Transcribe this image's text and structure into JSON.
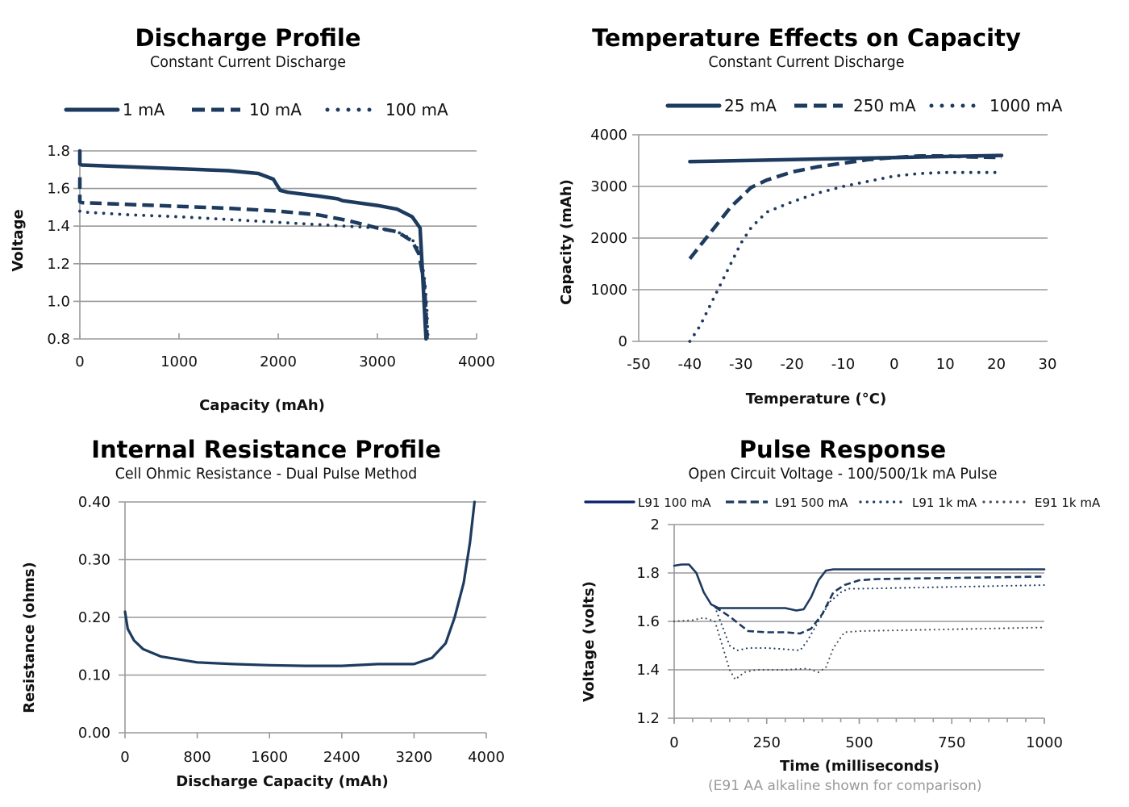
{
  "colors": {
    "series": "#1d3a5f",
    "series_pulse_l91_100": "#0a1f6b",
    "grid": "#999999",
    "note": "#999999"
  },
  "chart_data": [
    {
      "id": "discharge",
      "type": "line",
      "title": "Discharge Profile",
      "subtitle": "Constant Current Discharge",
      "xlabel": "Capacity (mAh)",
      "ylabel": "Voltage",
      "xlim": [
        0,
        4000
      ],
      "ylim": [
        0.8,
        1.8
      ],
      "xticks": [
        "0",
        "1000",
        "2000",
        "3000",
        "4000"
      ],
      "yticks": [
        "0.8",
        "1.0",
        "1.2",
        "1.4",
        "1.6",
        "1.8"
      ],
      "grid": true,
      "legend_position": "top",
      "series": [
        {
          "name": "1 mA",
          "style": "solid",
          "x": [
            0,
            0,
            20,
            500,
            1000,
            1500,
            1800,
            1950,
            2020,
            2100,
            2400,
            2600,
            2650,
            3000,
            3200,
            3350,
            3430,
            3460,
            3480,
            3490
          ],
          "y": [
            1.8,
            1.73,
            1.725,
            1.715,
            1.705,
            1.695,
            1.68,
            1.65,
            1.59,
            1.58,
            1.56,
            1.545,
            1.535,
            1.51,
            1.49,
            1.45,
            1.39,
            1.1,
            0.9,
            0.8
          ]
        },
        {
          "name": "10 mA",
          "style": "dashed",
          "x": [
            0,
            0,
            20,
            500,
            1000,
            1500,
            2000,
            2400,
            2700,
            3000,
            3200,
            3350,
            3420,
            3470,
            3490,
            3500
          ],
          "y": [
            1.66,
            1.53,
            1.525,
            1.515,
            1.505,
            1.495,
            1.48,
            1.46,
            1.43,
            1.39,
            1.37,
            1.32,
            1.25,
            1.1,
            0.95,
            0.8
          ]
        },
        {
          "name": "100 mA",
          "style": "dotted",
          "x": [
            0,
            20,
            500,
            1000,
            1500,
            2000,
            2500,
            3000,
            3200,
            3350,
            3440,
            3480,
            3500,
            3510
          ],
          "y": [
            1.48,
            1.475,
            1.46,
            1.45,
            1.435,
            1.42,
            1.405,
            1.39,
            1.37,
            1.33,
            1.25,
            1.1,
            0.95,
            0.8
          ]
        }
      ]
    },
    {
      "id": "temperature",
      "type": "line",
      "title": "Temperature Effects on Capacity",
      "subtitle": "Constant Current Discharge",
      "xlabel": "Temperature (°C)",
      "ylabel": "Capacity (mAh)",
      "xlim": [
        -50,
        30
      ],
      "ylim": [
        0,
        4000
      ],
      "xticks": [
        "-50",
        "-40",
        "-30",
        "-20",
        "-10",
        "0",
        "10",
        "20",
        "30"
      ],
      "yticks": [
        "0",
        "1000",
        "2000",
        "3000",
        "4000"
      ],
      "grid": true,
      "legend_position": "top",
      "series": [
        {
          "name": "25 mA",
          "style": "solid",
          "x": [
            -40,
            -20,
            0,
            21
          ],
          "y": [
            3480,
            3520,
            3560,
            3600
          ]
        },
        {
          "name": "250 mA",
          "style": "dashed",
          "x": [
            -40,
            -36,
            -32,
            -28,
            -25,
            -20,
            -15,
            -10,
            -5,
            0,
            5,
            10,
            15,
            21
          ],
          "y": [
            1600,
            2100,
            2600,
            2980,
            3120,
            3280,
            3380,
            3450,
            3520,
            3560,
            3590,
            3590,
            3570,
            3560
          ]
        },
        {
          "name": "1000 mA",
          "style": "dotted",
          "x": [
            -40,
            -38,
            -36,
            -34,
            -32,
            -30,
            -28,
            -25,
            -20,
            -15,
            -10,
            -5,
            0,
            5,
            10,
            15,
            21
          ],
          "y": [
            0,
            300,
            700,
            1100,
            1500,
            1900,
            2200,
            2500,
            2700,
            2870,
            3000,
            3100,
            3200,
            3250,
            3270,
            3270,
            3270
          ]
        }
      ]
    },
    {
      "id": "resistance",
      "type": "line",
      "title": "Internal Resistance Profile",
      "subtitle": "Cell Ohmic Resistance - Dual Pulse Method",
      "xlabel": "Discharge Capacity (mAh)",
      "ylabel": "Resistance (ohms)",
      "xlim": [
        0,
        4000
      ],
      "ylim": [
        0,
        0.4
      ],
      "xticks": [
        "0",
        "800",
        "1600",
        "2400",
        "3200",
        "4000"
      ],
      "yticks": [
        "0.00",
        "0.10",
        "0.20",
        "0.30",
        "0.40"
      ],
      "grid": true,
      "series": [
        {
          "name": "Resistance",
          "style": "solid",
          "x": [
            0,
            30,
            100,
            200,
            400,
            800,
            1200,
            1600,
            2000,
            2400,
            2800,
            3200,
            3400,
            3550,
            3650,
            3750,
            3820,
            3870
          ],
          "y": [
            0.21,
            0.18,
            0.16,
            0.145,
            0.132,
            0.122,
            0.119,
            0.117,
            0.116,
            0.116,
            0.119,
            0.119,
            0.13,
            0.155,
            0.2,
            0.26,
            0.33,
            0.4
          ]
        }
      ]
    },
    {
      "id": "pulse",
      "type": "line",
      "title": "Pulse Response",
      "subtitle": "Open Circuit Voltage -  100/500/1k mA Pulse",
      "xlabel": "Time (milliseconds)",
      "ylabel": "Voltage (volts)",
      "note": "(E91 AA alkaline shown for comparison)",
      "xlim": [
        0,
        1000
      ],
      "ylim": [
        1.2,
        2.0
      ],
      "xticks": [
        "0",
        "250",
        "500",
        "750",
        "1000"
      ],
      "yticks": [
        "1.2",
        "1.4",
        "1.6",
        "1.8",
        "2"
      ],
      "grid": true,
      "legend_position": "top",
      "series": [
        {
          "name": "L91 100 mA",
          "style": "solid",
          "x": [
            0,
            20,
            40,
            60,
            80,
            100,
            120,
            200,
            300,
            330,
            350,
            370,
            390,
            410,
            430,
            500,
            1000
          ],
          "y": [
            1.83,
            1.835,
            1.835,
            1.8,
            1.72,
            1.67,
            1.655,
            1.655,
            1.655,
            1.645,
            1.65,
            1.7,
            1.77,
            1.81,
            1.815,
            1.815,
            1.815
          ]
        },
        {
          "name": "L91 500 mA",
          "style": "dashed",
          "x": [
            110,
            150,
            200,
            250,
            300,
            340,
            370,
            400,
            430,
            460,
            500,
            550,
            1000
          ],
          "y": [
            1.66,
            1.62,
            1.56,
            1.555,
            1.555,
            1.55,
            1.57,
            1.63,
            1.72,
            1.75,
            1.77,
            1.775,
            1.785
          ]
        },
        {
          "name": "L91 1k mA",
          "style": "dotted",
          "x": [
            110,
            130,
            150,
            170,
            200,
            250,
            300,
            340,
            360,
            390,
            420,
            450,
            470,
            500,
            1000
          ],
          "y": [
            1.66,
            1.58,
            1.5,
            1.48,
            1.49,
            1.49,
            1.485,
            1.48,
            1.52,
            1.6,
            1.68,
            1.72,
            1.735,
            1.735,
            1.75
          ]
        },
        {
          "name": "E91 1k mA",
          "style": "dotted",
          "x": [
            0,
            50,
            80,
            110,
            130,
            150,
            165,
            190,
            220,
            300,
            360,
            390,
            410,
            430,
            460,
            500,
            1000
          ],
          "y": [
            1.6,
            1.605,
            1.615,
            1.6,
            1.5,
            1.4,
            1.36,
            1.39,
            1.4,
            1.4,
            1.405,
            1.39,
            1.41,
            1.49,
            1.555,
            1.56,
            1.575
          ]
        }
      ]
    }
  ]
}
